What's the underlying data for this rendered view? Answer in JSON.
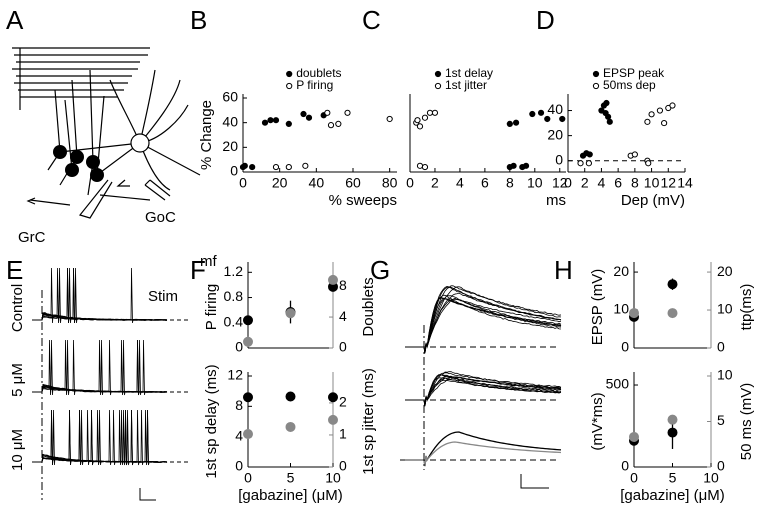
{
  "figure": {
    "panel_labels": [
      "A",
      "B",
      "C",
      "D",
      "E",
      "F",
      "G",
      "H"
    ],
    "diagram_labels": {
      "grc": "GrC",
      "goc": "GoC",
      "mf": "mf",
      "stim": "Stim"
    },
    "trace_labels": [
      "Control",
      "5 μM",
      "10 μM"
    ]
  },
  "chart_data": [
    {
      "type": "scatter",
      "xlabel": "% sweeps",
      "ylabel": "% Change",
      "xlim": [
        0,
        84
      ],
      "xticks": [
        0,
        20,
        40,
        60,
        80
      ],
      "ylim": [
        0,
        60
      ],
      "yticks": [
        0,
        20,
        40,
        60
      ],
      "legend": "upper center",
      "series": [
        {
          "name": "doublets",
          "marker": "filled",
          "color": "#000000",
          "x": [
            0,
            1,
            5,
            12,
            15,
            18,
            25,
            33,
            36,
            44
          ],
          "values": [
            4,
            5,
            4,
            40,
            42,
            42,
            39,
            47,
            44,
            46
          ]
        },
        {
          "name": "P firing",
          "marker": "open",
          "color": "#000000",
          "x": [
            18,
            25,
            34,
            46,
            48,
            52,
            57,
            80
          ],
          "values": [
            4,
            4,
            5,
            48,
            38,
            39,
            48,
            43
          ]
        }
      ]
    },
    {
      "type": "scatter",
      "xlabel": "ms",
      "xlim": [
        0,
        12.5
      ],
      "xticks": [
        0,
        2,
        4,
        6,
        8,
        10,
        12
      ],
      "ylim": [
        0,
        60
      ],
      "legend": "upper left",
      "series": [
        {
          "name": "1st delay",
          "marker": "filled",
          "color": "#000000",
          "x": [
            8,
            8.3,
            9,
            9.3,
            8,
            8.5,
            9.8,
            10.5,
            11,
            12.2
          ],
          "values": [
            4,
            5,
            4,
            5,
            39,
            40,
            47,
            48,
            43,
            43
          ]
        },
        {
          "name": "1st jitter",
          "marker": "open",
          "color": "#000000",
          "x": [
            0.5,
            0.8,
            1.2,
            1.6,
            2,
            0.8,
            1.2,
            0.6
          ],
          "values": [
            40,
            37,
            44,
            48,
            48,
            5,
            4,
            42
          ]
        }
      ]
    },
    {
      "type": "scatter",
      "xlabel": "Dep (mV)",
      "xlim": [
        0,
        14
      ],
      "xticks": [
        0,
        2,
        4,
        6,
        8,
        10,
        12,
        14
      ],
      "ylim": [
        -9,
        50
      ],
      "yticks": [
        0,
        20,
        40
      ],
      "hline": 0,
      "legend": "upper left",
      "series": [
        {
          "name": "EPSP peak",
          "marker": "filled",
          "color": "#000000",
          "x": [
            1.8,
            2.2,
            2.6,
            4,
            4.3,
            4.6,
            4.8,
            5,
            4.5
          ],
          "values": [
            4,
            6,
            5,
            40,
            44,
            46,
            35,
            31,
            38
          ]
        },
        {
          "name": "50ms dep",
          "marker": "open",
          "color": "#000000",
          "x": [
            1.5,
            2.5,
            7.5,
            8,
            9.5,
            9.6,
            9.5,
            10,
            11.5,
            12,
            12.5,
            11
          ],
          "values": [
            -2,
            -2,
            4,
            5,
            0,
            -2,
            31,
            37,
            30,
            42,
            44,
            40
          ]
        }
      ]
    },
    {
      "type": "scatter",
      "ylabel": "P firing",
      "y2label": "Doublets",
      "xlim": [
        0,
        10
      ],
      "ylim": [
        0,
        1.3
      ],
      "yticks": [
        0,
        0.4,
        0.8,
        1.2
      ],
      "y2lim": [
        0,
        10.6
      ],
      "y2ticks": [
        0,
        4,
        8
      ],
      "series": [
        {
          "marker": "filled",
          "color": "#000000",
          "x": [
            0,
            5,
            10
          ],
          "values": [
            0.44,
            0.57,
            0.97
          ],
          "errors": [
            null,
            0.18,
            0.07
          ]
        },
        {
          "marker": "filled",
          "color": "#888888",
          "axis": "y2",
          "x": [
            0,
            5,
            10
          ],
          "values": [
            0.8,
            4.5,
            8.8
          ],
          "errors": [
            null,
            null,
            0.5
          ]
        }
      ]
    },
    {
      "type": "scatter",
      "ylabel": "1st sp delay (ms)",
      "y2label": "1st sp jitter (ms)",
      "xlabel": "[gabazine] (μM)",
      "xlim": [
        0,
        10
      ],
      "xticks": [
        0,
        5,
        10
      ],
      "ylim": [
        0,
        12
      ],
      "yticks": [
        0,
        4,
        8,
        12
      ],
      "y2lim": [
        0,
        2.84
      ],
      "y2ticks": [
        0,
        1,
        2
      ],
      "series": [
        {
          "marker": "filled",
          "color": "#000000",
          "x": [
            0,
            5,
            10
          ],
          "values": [
            9.2,
            9.3,
            9.2
          ],
          "errors": [
            0.5,
            0.4,
            null
          ]
        },
        {
          "marker": "filled",
          "color": "#888888",
          "axis": "y2",
          "x": [
            0,
            5,
            10
          ],
          "values": [
            1.03,
            1.25,
            1.47
          ]
        }
      ]
    },
    {
      "type": "scatter",
      "ylabel": "EPSP (mV)",
      "y2label": "ttp(ms)",
      "xlim": [
        0,
        10
      ],
      "ylim": [
        0,
        21.6
      ],
      "yticks": [
        0,
        10,
        20
      ],
      "y2lim": [
        0,
        21.6
      ],
      "y2ticks": [
        0,
        10,
        20
      ],
      "series": [
        {
          "marker": "filled",
          "color": "#000000",
          "x": [
            0,
            5
          ],
          "values": [
            8.2,
            16.8
          ],
          "errors": [
            null,
            1.5
          ]
        },
        {
          "marker": "filled",
          "color": "#888888",
          "axis": "y2",
          "x": [
            0,
            5
          ],
          "values": [
            9.2,
            9.2
          ]
        }
      ]
    },
    {
      "type": "scatter",
      "ylabel": "(mV*ms)",
      "y2label": "50 ms (mV)",
      "xlabel": "[gabazine] (μM)",
      "xlim": [
        0,
        10
      ],
      "xticks": [
        0,
        5,
        10
      ],
      "ylim": [
        0,
        555
      ],
      "yticks": [
        0,
        500
      ],
      "y2lim": [
        0,
        10
      ],
      "y2ticks": [
        0,
        5,
        10
      ],
      "series": [
        {
          "marker": "filled",
          "color": "#000000",
          "x": [
            0,
            5
          ],
          "values": [
            160,
            210
          ],
          "errors": [
            null,
            100
          ]
        },
        {
          "marker": "filled",
          "color": "#888888",
          "axis": "y2",
          "x": [
            0,
            5
          ],
          "values": [
            3.3,
            5.2
          ]
        }
      ]
    }
  ]
}
